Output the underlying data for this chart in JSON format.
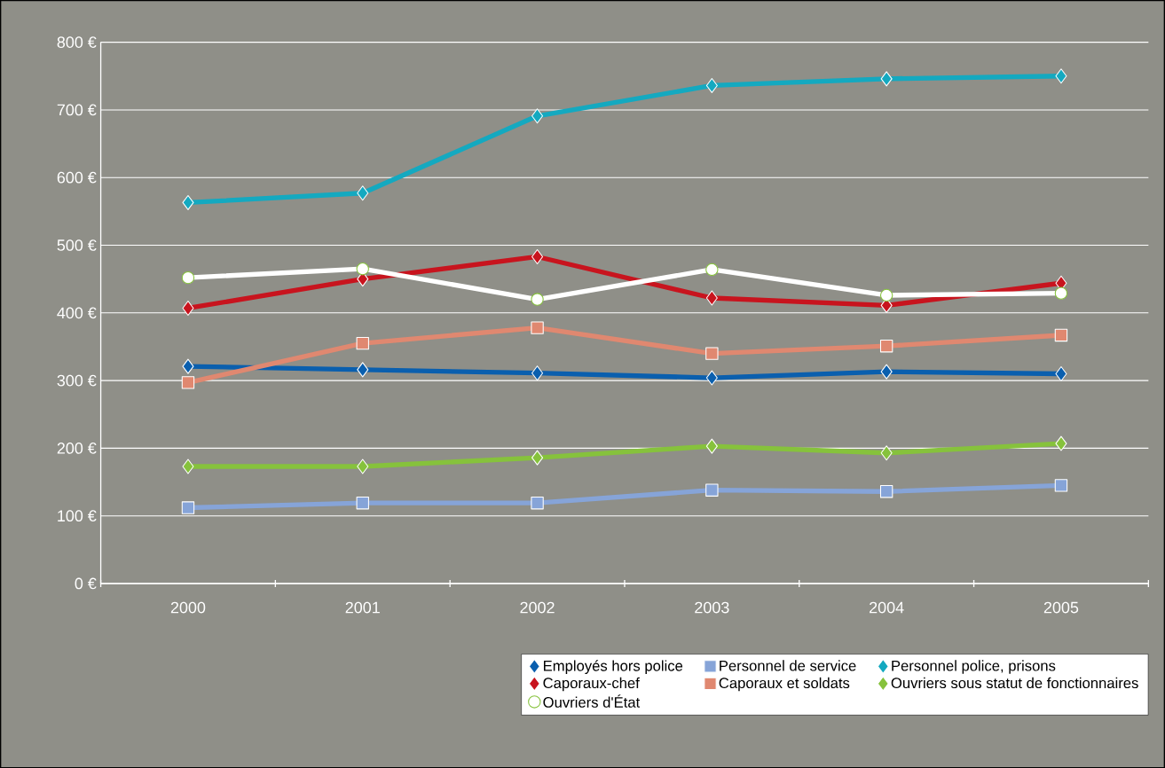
{
  "chart_data": {
    "type": "line",
    "categories": [
      "2000",
      "2001",
      "2002",
      "2003",
      "2004",
      "2005"
    ],
    "series": [
      {
        "name": "Employés hors police",
        "color": "#0a5fae",
        "marker": "diamond",
        "values": [
          321,
          316,
          311,
          304,
          313,
          310
        ]
      },
      {
        "name": "Personnel de service",
        "color": "#86a4d8",
        "marker": "square",
        "values": [
          112,
          119,
          119,
          138,
          136,
          145
        ]
      },
      {
        "name": "Personnel police, prisons",
        "color": "#14a9c0",
        "marker": "diamond",
        "values": [
          563,
          577,
          691,
          736,
          746,
          750
        ]
      },
      {
        "name": "Caporaux-chef",
        "color": "#c8141e",
        "marker": "diamond",
        "values": [
          407,
          450,
          483,
          422,
          411,
          444
        ]
      },
      {
        "name": "Caporaux et soldats",
        "color": "#e08870",
        "marker": "square",
        "values": [
          297,
          355,
          378,
          340,
          351,
          367
        ]
      },
      {
        "name": "Ouvriers sous statut de fonctionnaires",
        "color": "#86c23c",
        "marker": "diamond",
        "values": [
          173,
          173,
          186,
          203,
          193,
          207
        ]
      },
      {
        "name": "Ouvriers d'État",
        "color": "#ffffff",
        "marker": "circle",
        "values": [
          452,
          465,
          420,
          464,
          426,
          429
        ]
      }
    ],
    "ylim": [
      0,
      800
    ],
    "yticks": [
      {
        "value": 0,
        "label": "0 €"
      },
      {
        "value": 100,
        "label": "100 €"
      },
      {
        "value": 200,
        "label": "200 €"
      },
      {
        "value": 300,
        "label": "300 €"
      },
      {
        "value": 400,
        "label": "400 €"
      },
      {
        "value": 500,
        "label": "500 €"
      },
      {
        "value": 600,
        "label": "600 €"
      },
      {
        "value": 700,
        "label": "700 €"
      },
      {
        "value": 800,
        "label": "800 €"
      }
    ],
    "grid": "y",
    "legend": "bottom",
    "line_style": "solid"
  }
}
